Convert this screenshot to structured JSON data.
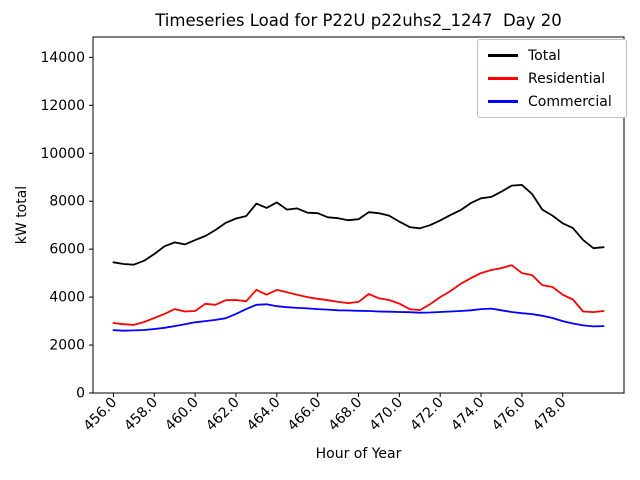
{
  "chart_data": {
    "type": "line",
    "title": "Timeseries Load for P22U p22uhs2_1247  Day 20",
    "xlabel": "Hour of Year",
    "ylabel": "kW total",
    "xlim": [
      455.0,
      481.0
    ],
    "ylim": [
      0,
      14850
    ],
    "grid": false,
    "legend_position": "upper right",
    "x_tick_values": [
      456,
      458,
      460,
      462,
      464,
      466,
      468,
      470,
      472,
      474,
      476,
      478
    ],
    "x_tick_labels": [
      "456.0",
      "458.0",
      "460.0",
      "462.0",
      "464.0",
      "466.0",
      "468.0",
      "470.0",
      "472.0",
      "474.0",
      "476.0",
      "478.0"
    ],
    "y_tick_values": [
      0,
      2000,
      4000,
      6000,
      8000,
      10000,
      12000,
      14000
    ],
    "y_tick_labels": [
      "0",
      "2000",
      "4000",
      "6000",
      "8000",
      "10000",
      "12000",
      "14000"
    ],
    "x": [
      456.0,
      456.5,
      457.0,
      457.5,
      458.0,
      458.5,
      459.0,
      459.5,
      460.0,
      460.5,
      461.0,
      461.5,
      462.0,
      462.5,
      463.0,
      463.5,
      464.0,
      464.5,
      465.0,
      465.5,
      466.0,
      466.5,
      467.0,
      467.5,
      468.0,
      468.5,
      469.0,
      469.5,
      470.0,
      470.5,
      471.0,
      471.5,
      472.0,
      472.5,
      473.0,
      473.5,
      474.0,
      474.5,
      475.0,
      475.5,
      476.0,
      476.5,
      477.0,
      477.5,
      478.0,
      478.5,
      479.0,
      479.5,
      480.0
    ],
    "series": [
      {
        "name": "Total",
        "color": "#000000",
        "values": [
          5450,
          5380,
          5350,
          5520,
          5800,
          6120,
          6280,
          6200,
          6380,
          6550,
          6800,
          7100,
          7280,
          7380,
          7900,
          7720,
          7950,
          7650,
          7700,
          7520,
          7500,
          7330,
          7290,
          7210,
          7250,
          7540,
          7500,
          7400,
          7150,
          6920,
          6870,
          7000,
          7200,
          7420,
          7630,
          7920,
          8120,
          8180,
          8400,
          8650,
          8680,
          8300,
          7650,
          7400,
          7080,
          6880,
          6380,
          6040,
          6080
        ]
      },
      {
        "name": "Residential",
        "color": "#ff0000",
        "values": [
          2920,
          2870,
          2840,
          2960,
          3130,
          3300,
          3500,
          3400,
          3420,
          3720,
          3680,
          3870,
          3880,
          3830,
          4300,
          4100,
          4300,
          4200,
          4100,
          4000,
          3930,
          3870,
          3800,
          3750,
          3800,
          4130,
          3950,
          3880,
          3730,
          3500,
          3460,
          3700,
          4000,
          4250,
          4550,
          4790,
          5000,
          5130,
          5210,
          5330,
          5000,
          4920,
          4500,
          4420,
          4100,
          3900,
          3400,
          3375,
          3420
        ]
      },
      {
        "name": "Commercial",
        "color": "#0000ff",
        "values": [
          2625,
          2600,
          2610,
          2630,
          2670,
          2720,
          2790,
          2870,
          2950,
          3000,
          3050,
          3120,
          3300,
          3500,
          3680,
          3700,
          3620,
          3580,
          3550,
          3530,
          3500,
          3480,
          3450,
          3440,
          3430,
          3420,
          3400,
          3390,
          3380,
          3370,
          3350,
          3360,
          3380,
          3400,
          3420,
          3450,
          3500,
          3520,
          3450,
          3380,
          3330,
          3290,
          3220,
          3130,
          3000,
          2900,
          2820,
          2780,
          2790
        ]
      }
    ]
  }
}
